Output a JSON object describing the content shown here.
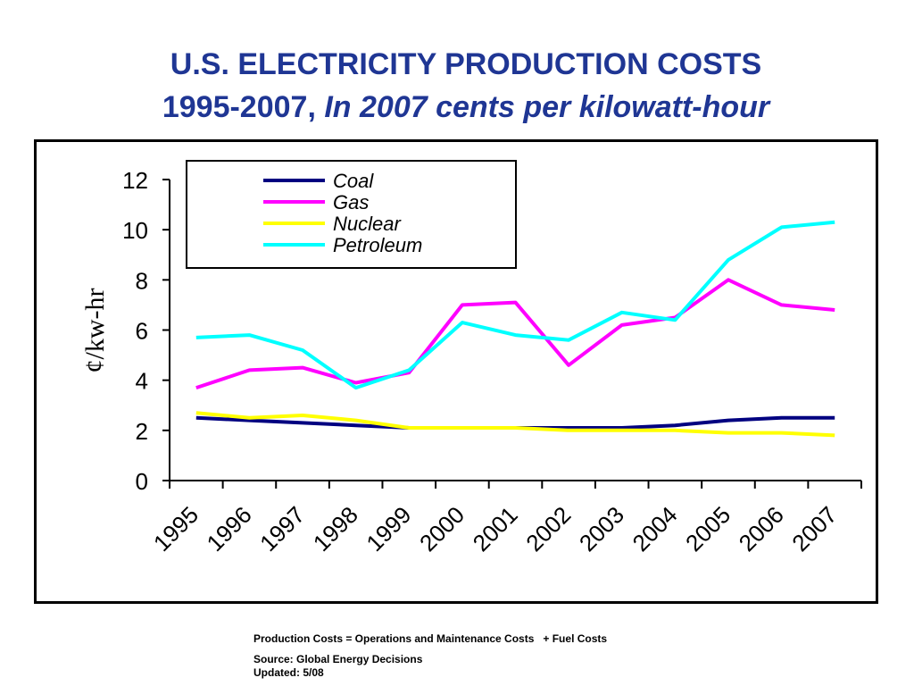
{
  "title": {
    "line1": "U.S. ELECTRICITY PRODUCTION COSTS",
    "line2_plain": "1995-2007, ",
    "line2_italic": "In 2007 cents per kilowatt-hour"
  },
  "footnotes": {
    "definition": "Production Costs = Operations and Maintenance Costs   + Fuel Costs",
    "source": "Source: Global Energy Decisions",
    "updated": "Updated: 5/08"
  },
  "chart_data": {
    "type": "line",
    "title": "U.S. ELECTRICITY PRODUCTION COSTS 1995-2007, In 2007 cents per kilowatt-hour",
    "xlabel": "",
    "ylabel": "¢/kw-hr",
    "ylim": [
      0,
      12
    ],
    "yticks": [
      0,
      2,
      4,
      6,
      8,
      10,
      12
    ],
    "grid": false,
    "legend_position": "top-left",
    "categories": [
      "1995",
      "1996",
      "1997",
      "1998",
      "1999",
      "2000",
      "2001",
      "2002",
      "2003",
      "2004",
      "2005",
      "2006",
      "2007"
    ],
    "series": [
      {
        "name": "Coal",
        "color": "#000080",
        "values": [
          2.5,
          2.4,
          2.3,
          2.2,
          2.1,
          2.1,
          2.1,
          2.1,
          2.1,
          2.2,
          2.4,
          2.5,
          2.5
        ]
      },
      {
        "name": "Gas",
        "color": "#ff00ff",
        "values": [
          3.7,
          4.4,
          4.5,
          3.9,
          4.3,
          7.0,
          7.1,
          4.6,
          6.2,
          6.5,
          8.0,
          7.0,
          6.8
        ]
      },
      {
        "name": "Nuclear",
        "color": "#ffff00",
        "values": [
          2.7,
          2.5,
          2.6,
          2.4,
          2.1,
          2.1,
          2.1,
          2.0,
          2.0,
          2.0,
          1.9,
          1.9,
          1.8
        ]
      },
      {
        "name": "Petroleum",
        "color": "#00ffff",
        "values": [
          5.7,
          5.8,
          5.2,
          3.7,
          4.4,
          6.3,
          5.8,
          5.6,
          6.7,
          6.4,
          8.8,
          10.1,
          10.3
        ]
      }
    ]
  }
}
